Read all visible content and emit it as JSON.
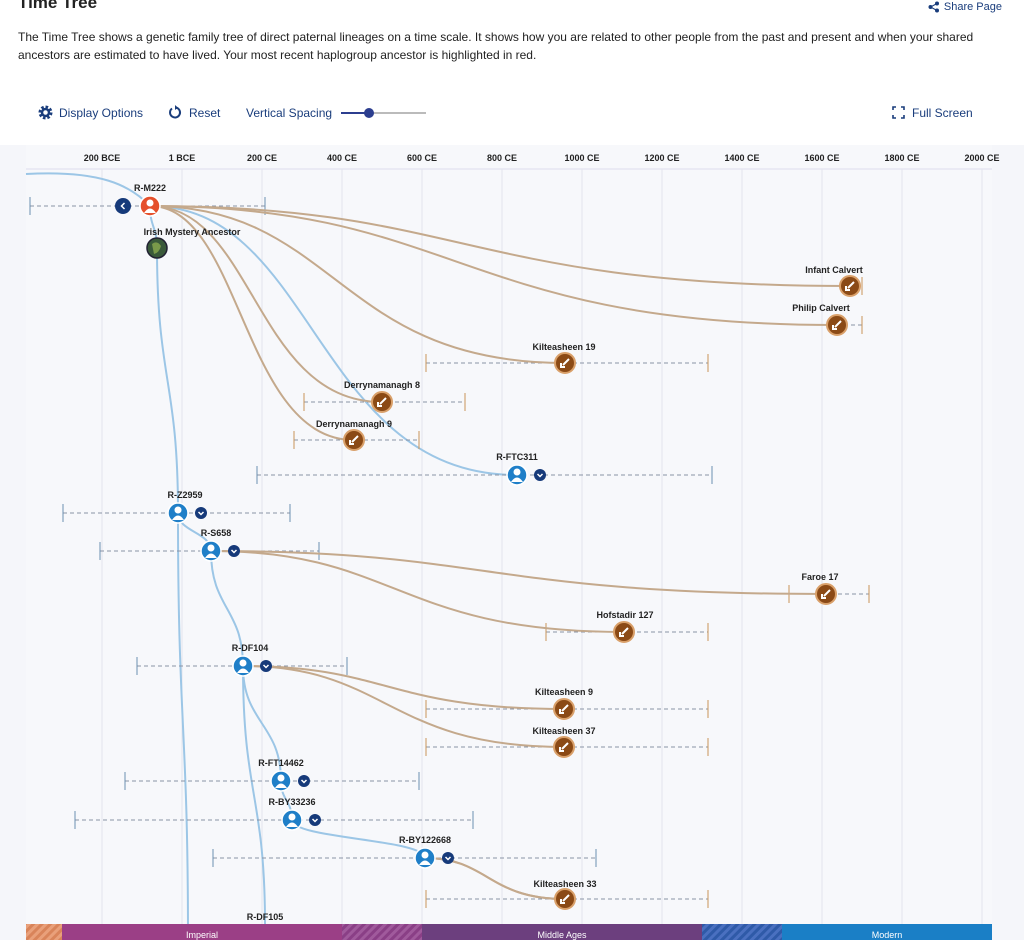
{
  "header": {
    "title": "Time Tree",
    "share": "Share Page",
    "description": "The Time Tree shows a genetic family tree of direct paternal lineages on a time scale. It shows how you are related to other people from the past and present and when your shared ancestors are estimated to have lived. Your most recent haplogroup ancestor is highlighted in red."
  },
  "toolbar": {
    "display_options": "Display Options",
    "reset": "Reset",
    "vertical_spacing": "Vertical Spacing",
    "full_screen": "Full Screen"
  },
  "timeline": {
    "ticks": [
      "200 BCE",
      "1 BCE",
      "200 CE",
      "400 CE",
      "600 CE",
      "800 CE",
      "1000 CE",
      "1200 CE",
      "1400 CE",
      "1600 CE",
      "1800 CE",
      "2000 CE"
    ]
  },
  "nodes": [
    {
      "label": "R-M222"
    },
    {
      "label": "Irish Mystery Ancestor"
    },
    {
      "label": "Infant Calvert"
    },
    {
      "label": "Philip Calvert"
    },
    {
      "label": "Kilteasheen 19"
    },
    {
      "label": "Derrynamanagh 8"
    },
    {
      "label": "Derrynamanagh 9"
    },
    {
      "label": "R-FTC311"
    },
    {
      "label": "R-Z2959"
    },
    {
      "label": "R-S658"
    },
    {
      "label": "Faroe 17"
    },
    {
      "label": "Hofstadir 127"
    },
    {
      "label": "R-DF104"
    },
    {
      "label": "Kilteasheen 9"
    },
    {
      "label": "Kilteasheen 37"
    },
    {
      "label": "R-FT14462"
    },
    {
      "label": "R-BY33236"
    },
    {
      "label": "R-BY122668"
    },
    {
      "label": "Kilteasheen 33"
    },
    {
      "label": "R-DF105"
    }
  ],
  "eras": [
    "Imperial",
    "Middle Ages",
    "Modern"
  ]
}
